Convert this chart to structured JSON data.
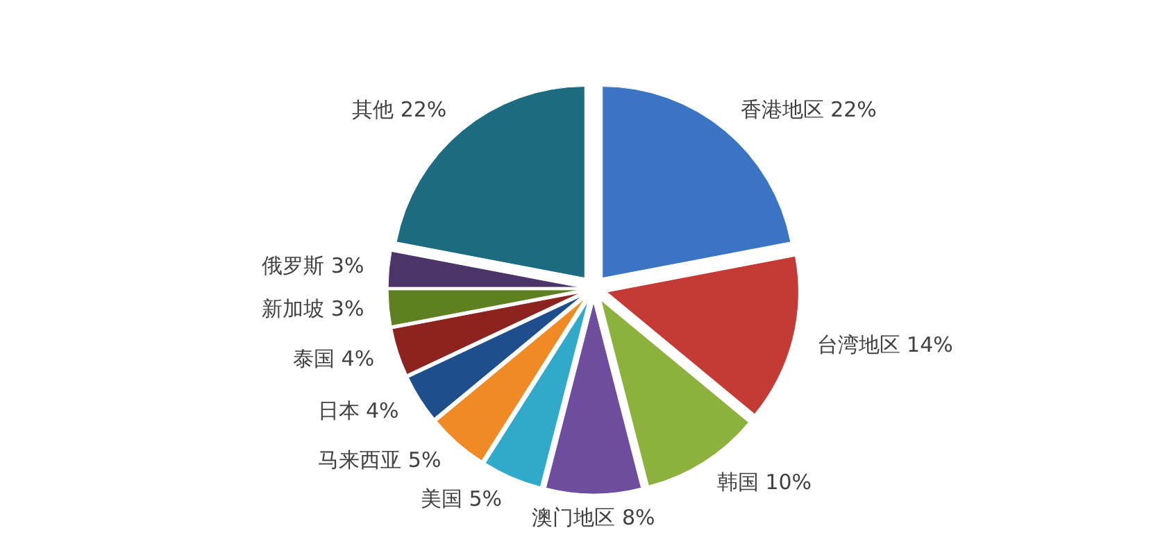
{
  "chart_data": {
    "type": "pie",
    "categories": [
      "香港地区",
      "台湾地区",
      "韩国",
      "澳门地区",
      "美国",
      "马来西亚",
      "日本",
      "泰国",
      "新加坡",
      "俄罗斯",
      "其他"
    ],
    "values": [
      22,
      14,
      10,
      8,
      5,
      5,
      4,
      4,
      3,
      3,
      22
    ],
    "value_labels": [
      "22%",
      "14%",
      "10%",
      "8%",
      "5%",
      "5%",
      "4%",
      "4%",
      "3%",
      "3%",
      "22%"
    ],
    "colors": [
      "#3b74c2",
      "#c43a35",
      "#8cb13c",
      "#6e4c9e",
      "#31a9c9",
      "#f08a24",
      "#1f4e8c",
      "#8c231f",
      "#5f8020",
      "#4a3468",
      "#1c6b80"
    ]
  }
}
